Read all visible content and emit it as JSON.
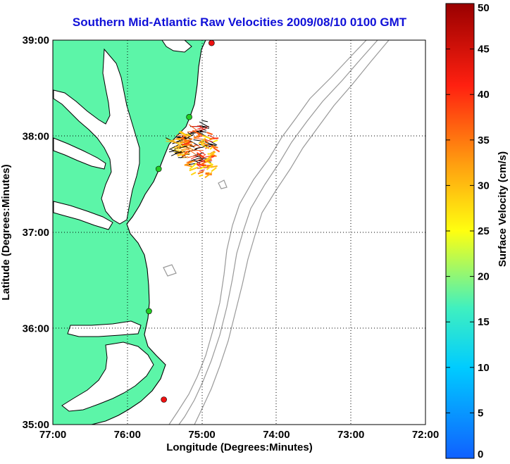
{
  "title": "Southern Mid-Atlantic Raw Velocities 2009/08/10 0100 GMT",
  "map": {
    "xlabel": "Longitude (Degrees:Minutes)",
    "ylabel": "Latitude (Degrees:Minutes)",
    "lon_ticks": [
      "77:00",
      "76:00",
      "75:00",
      "74:00",
      "73:00",
      "72:00"
    ],
    "lat_ticks": [
      "39:00",
      "38:00",
      "37:00",
      "36:00",
      "35:00"
    ],
    "lon_range": [
      -77,
      -72
    ],
    "lat_range": [
      35,
      39
    ],
    "colors": {
      "land": "#5cf5a8",
      "water": "#ffffff",
      "coastline": "#000000",
      "bathymetry": "#999999",
      "grid": "#000000",
      "station_green": "#22cc22",
      "station_red": "#ee1111"
    },
    "stations": [
      {
        "type": "red",
        "lon": -74.87,
        "lat": 38.97
      },
      {
        "type": "green",
        "lon": -75.17,
        "lat": 38.2
      },
      {
        "type": "green",
        "lon": -75.58,
        "lat": 37.66
      },
      {
        "type": "green",
        "lon": -75.71,
        "lat": 36.18
      },
      {
        "type": "red",
        "lon": -75.51,
        "lat": 35.26
      }
    ]
  },
  "colorbar": {
    "label": "Surface Velocity (cm/s)",
    "ticks": [
      "0",
      "5",
      "10",
      "15",
      "20",
      "25",
      "30",
      "35",
      "40",
      "45",
      "50"
    ],
    "min": 0,
    "max": 50
  }
}
